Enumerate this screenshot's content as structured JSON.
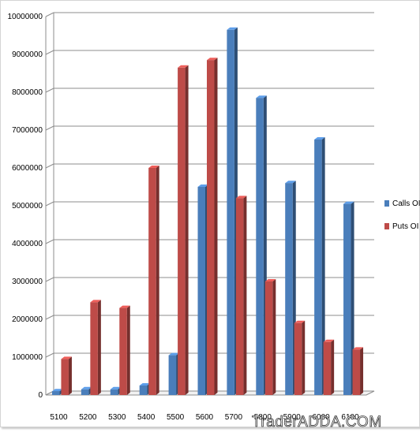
{
  "chart_data": {
    "type": "bar",
    "style": "3d-clustered-column",
    "categories": [
      "5100",
      "5200",
      "5300",
      "5400",
      "5500",
      "5600",
      "5700",
      "5800",
      "5900",
      "6000",
      "6100"
    ],
    "series": [
      {
        "name": "Calls OI",
        "color": "#4a7ebb",
        "values": [
          100000,
          150000,
          150000,
          250000,
          1050000,
          5500000,
          9650000,
          7850000,
          5600000,
          6750000,
          5050000
        ]
      },
      {
        "name": "Puts OI",
        "color": "#be4b48",
        "values": [
          950000,
          2450000,
          2300000,
          6000000,
          8650000,
          8850000,
          5200000,
          3000000,
          1900000,
          1400000,
          1200000
        ]
      }
    ],
    "ylim": [
      0,
      10000000
    ],
    "yticks": [
      "0",
      "1000000",
      "2000000",
      "3000000",
      "4000000",
      "5000000",
      "6000000",
      "7000000",
      "8000000",
      "9000000",
      "10000000"
    ],
    "grid": true,
    "legend_position": "right"
  },
  "watermark": "TraderADDA.COM"
}
